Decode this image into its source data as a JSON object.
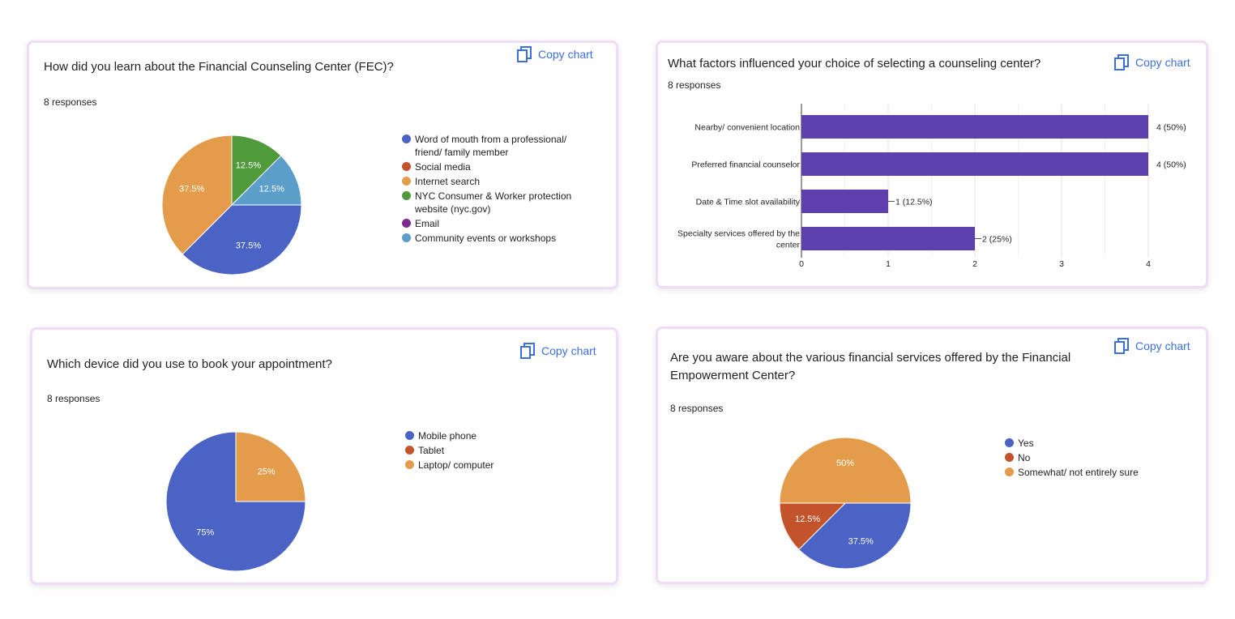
{
  "copy_label": "Copy chart",
  "colors": {
    "blue": "#4a63c4",
    "red": "#c2532b",
    "orange": "#e39d4a",
    "green": "#4f9a3a",
    "purple": "#7b2a8f",
    "teal": "#5b9ec9",
    "bar": "#5e3fae",
    "accent": "#3d6fd9"
  },
  "chart_data": [
    {
      "type": "pie",
      "title": "How did you learn about the Financial Counseling Center (FEC)?",
      "responses": "8 responses",
      "labels": [
        "Word of mouth from a professional/\nfriend/ family member",
        "Social media",
        "Internet search",
        "NYC Consumer & Worker protection\nwebsite (nyc.gov)",
        "Email",
        "Community events or workshops"
      ],
      "values": [
        37.5,
        0,
        37.5,
        12.5,
        0,
        12.5
      ],
      "slice_labels": [
        "37.5%",
        "",
        "37.5%",
        "12.5%",
        "",
        "12.5%"
      ],
      "colors": [
        "#4a63c4",
        "#c2532b",
        "#e39d4a",
        "#4f9a3a",
        "#7b2a8f",
        "#5b9ec9"
      ]
    },
    {
      "type": "bar",
      "orientation": "horizontal",
      "title": "What factors influenced your choice of selecting a counseling center?",
      "responses": "8 responses",
      "categories": [
        "Nearby/ convenient location",
        "Preferred financial counselor",
        "Date & Time slot availability",
        "Specialty services offered by the\ncenter"
      ],
      "values": [
        4,
        4,
        1,
        2
      ],
      "value_labels": [
        "4 (50%)",
        "4 (50%)",
        "1 (12.5%)",
        "2 (25%)"
      ],
      "xlim": [
        0,
        4
      ],
      "ticks": [
        "0",
        "1",
        "2",
        "3",
        "4"
      ],
      "grid": true
    },
    {
      "type": "pie",
      "title": "Which device did you use to book your appointment?",
      "responses": "8 responses",
      "labels": [
        "Mobile phone",
        "Tablet",
        "Laptop/ computer"
      ],
      "values": [
        75,
        0,
        25
      ],
      "slice_labels": [
        "75%",
        "",
        "25%"
      ],
      "colors": [
        "#4a63c4",
        "#c2532b",
        "#e39d4a"
      ]
    },
    {
      "type": "pie",
      "title": "Are you aware about the various financial services offered by the Financial\nEmpowerment Center?",
      "responses": "8 responses",
      "labels": [
        "Yes",
        "No",
        "Somewhat/ not entirely sure"
      ],
      "values": [
        37.5,
        12.5,
        50
      ],
      "slice_labels": [
        "37.5%",
        "12.5%",
        "50%"
      ],
      "colors": [
        "#4a63c4",
        "#c2532b",
        "#e39d4a"
      ]
    }
  ]
}
